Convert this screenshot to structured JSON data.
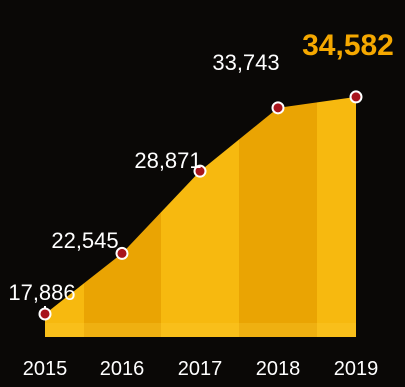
{
  "chart_data": {
    "type": "area",
    "title": "",
    "xlabel": "",
    "ylabel": "",
    "categories": [
      "2015",
      "2016",
      "2017",
      "2018",
      "2019"
    ],
    "values": [
      17886,
      22545,
      28871,
      33743,
      34582
    ],
    "data_labels": [
      "17,886",
      "22,545",
      "28,871",
      "33,743",
      "34,582"
    ],
    "highlight_index": 4,
    "ylim": [
      16500,
      36500
    ],
    "grid": false,
    "legend": "none",
    "colors": {
      "background": "#0a0806",
      "area_light": "#f7b90f",
      "area_dark": "#eaa403",
      "marker_fill": "#a8141c",
      "marker_stroke": "#ffffff",
      "label": "#ffffff",
      "highlight_label": "#f5a800"
    }
  }
}
